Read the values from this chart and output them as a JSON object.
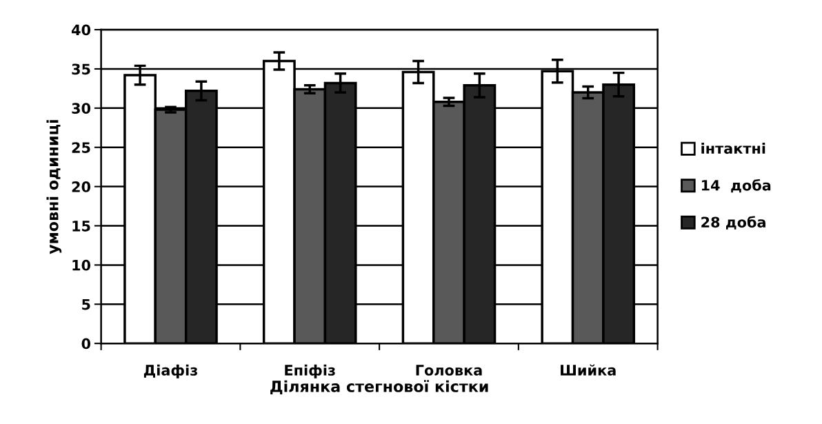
{
  "chart_data": {
    "type": "bar",
    "xlabel": "Ділянка стегнової кістки",
    "ylabel": "умовні одиниці",
    "categories": [
      "Діафіз",
      "Епіфіз",
      "Головка",
      "Шийка"
    ],
    "series": [
      {
        "name": "інтактні",
        "color": "#ffffff",
        "values": [
          34.2,
          36.0,
          34.6,
          34.7
        ],
        "errors": [
          1.2,
          1.1,
          1.4,
          1.45
        ]
      },
      {
        "name": "14  доба",
        "color": "#595959",
        "values": [
          29.8,
          32.4,
          30.8,
          32.0
        ],
        "errors": [
          0.35,
          0.5,
          0.5,
          0.75
        ]
      },
      {
        "name": "28 доба",
        "color": "#262626",
        "values": [
          32.2,
          33.2,
          32.9,
          33.0
        ],
        "errors": [
          1.2,
          1.2,
          1.5,
          1.5
        ]
      }
    ],
    "ylim": [
      0,
      40
    ],
    "yticks": [
      0,
      5,
      10,
      15,
      20,
      25,
      30,
      35,
      40
    ],
    "grid": "y",
    "legend": "right"
  }
}
